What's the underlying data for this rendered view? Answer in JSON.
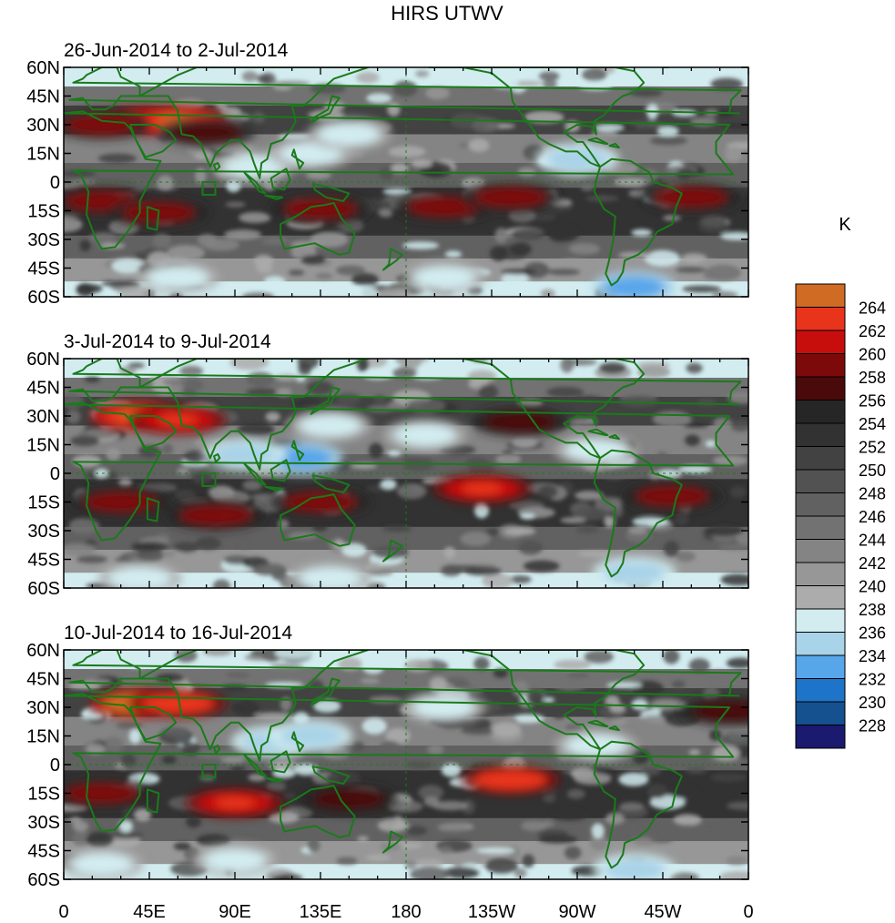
{
  "title": "HIRS UTWV",
  "colorbar": {
    "unit": "K",
    "levels": [
      228,
      230,
      232,
      234,
      236,
      238,
      240,
      242,
      244,
      246,
      248,
      250,
      252,
      254,
      256,
      258,
      260,
      262,
      264
    ],
    "colors": [
      "#1a1a6e",
      "#15508f",
      "#1e74c8",
      "#58a6ea",
      "#a9d3e8",
      "#d2ecf0",
      "#acacac",
      "#979797",
      "#848484",
      "#727272",
      "#616161",
      "#525252",
      "#424242",
      "#323232",
      "#262626",
      "#4a0a0a",
      "#7d0a0a",
      "#c80d0d",
      "#e8341a",
      "#d06b23"
    ]
  },
  "map": {
    "lat_labels": [
      "60N",
      "45N",
      "30N",
      "15N",
      "0",
      "15S",
      "30S",
      "45S",
      "60S"
    ],
    "lon_labels": [
      "0",
      "45E",
      "90E",
      "135E",
      "180",
      "135W",
      "90W",
      "45W",
      "0"
    ],
    "coastline_color": "#1a7a1a"
  },
  "panels": [
    {
      "title": "26-Jun-2014 to 2-Jul-2014"
    },
    {
      "title": "3-Jul-2014 to 9-Jul-2014"
    },
    {
      "title": "10-Jul-2014 to 16-Jul-2014"
    }
  ],
  "chart_data": {
    "type": "heatmap",
    "title": "HIRS UTWV",
    "variable_unit": "K",
    "x_range": [
      0,
      360
    ],
    "y_range": [
      -60,
      60
    ],
    "panels": [
      {
        "label": "26-Jun-2014 to 2-Jul-2014",
        "features": [
          {
            "lon": 40,
            "lat": 32,
            "value": 262
          },
          {
            "lon": 60,
            "lat": 32,
            "value": 263
          },
          {
            "lon": 20,
            "lat": 30,
            "value": 258
          },
          {
            "lon": 75,
            "lat": 26,
            "value": 256
          },
          {
            "lon": 20,
            "lat": -10,
            "value": 258
          },
          {
            "lon": 50,
            "lat": -16,
            "value": 258
          },
          {
            "lon": 135,
            "lat": -14,
            "value": 258
          },
          {
            "lon": 100,
            "lat": 8,
            "value": 237
          },
          {
            "lon": 130,
            "lat": 15,
            "value": 237
          },
          {
            "lon": 150,
            "lat": 25,
            "value": 237
          },
          {
            "lon": 200,
            "lat": -13,
            "value": 258
          },
          {
            "lon": 235,
            "lat": -8,
            "value": 258
          },
          {
            "lon": 330,
            "lat": -8,
            "value": 258
          },
          {
            "lon": 270,
            "lat": 12,
            "value": 235
          },
          {
            "lon": 300,
            "lat": -55,
            "value": 233
          },
          {
            "lon": 200,
            "lat": -50,
            "value": 237
          },
          {
            "lon": 60,
            "lat": -50,
            "value": 236
          }
        ]
      },
      {
        "label": "3-Jul-2014 to 9-Jul-2014",
        "features": [
          {
            "lon": 40,
            "lat": 30,
            "value": 263
          },
          {
            "lon": 60,
            "lat": 28,
            "value": 261
          },
          {
            "lon": 30,
            "lat": -15,
            "value": 258
          },
          {
            "lon": 80,
            "lat": -22,
            "value": 258
          },
          {
            "lon": 135,
            "lat": -15,
            "value": 258
          },
          {
            "lon": 125,
            "lat": 8,
            "value": 232
          },
          {
            "lon": 95,
            "lat": 10,
            "value": 234
          },
          {
            "lon": 140,
            "lat": 25,
            "value": 237
          },
          {
            "lon": 220,
            "lat": -8,
            "value": 261
          },
          {
            "lon": 240,
            "lat": 27,
            "value": 257
          },
          {
            "lon": 320,
            "lat": -12,
            "value": 258
          },
          {
            "lon": 190,
            "lat": 20,
            "value": 236
          },
          {
            "lon": 280,
            "lat": 12,
            "value": 237
          },
          {
            "lon": 300,
            "lat": -52,
            "value": 235
          },
          {
            "lon": 140,
            "lat": -55,
            "value": 236
          },
          {
            "lon": 40,
            "lat": -55,
            "value": 236
          }
        ]
      },
      {
        "label": "10-Jul-2014 to 16-Jul-2014",
        "features": [
          {
            "lon": 40,
            "lat": 32,
            "value": 264
          },
          {
            "lon": 60,
            "lat": 32,
            "value": 262
          },
          {
            "lon": 20,
            "lat": -15,
            "value": 258
          },
          {
            "lon": 90,
            "lat": -20,
            "value": 261
          },
          {
            "lon": 150,
            "lat": -18,
            "value": 257
          },
          {
            "lon": 110,
            "lat": 12,
            "value": 234
          },
          {
            "lon": 130,
            "lat": 15,
            "value": 235
          },
          {
            "lon": 235,
            "lat": -8,
            "value": 262
          },
          {
            "lon": 350,
            "lat": 28,
            "value": 257
          },
          {
            "lon": 200,
            "lat": 30,
            "value": 237
          },
          {
            "lon": 280,
            "lat": 10,
            "value": 236
          },
          {
            "lon": 300,
            "lat": -55,
            "value": 234
          },
          {
            "lon": 90,
            "lat": -50,
            "value": 236
          },
          {
            "lon": 20,
            "lat": -52,
            "value": 236
          }
        ]
      }
    ]
  }
}
